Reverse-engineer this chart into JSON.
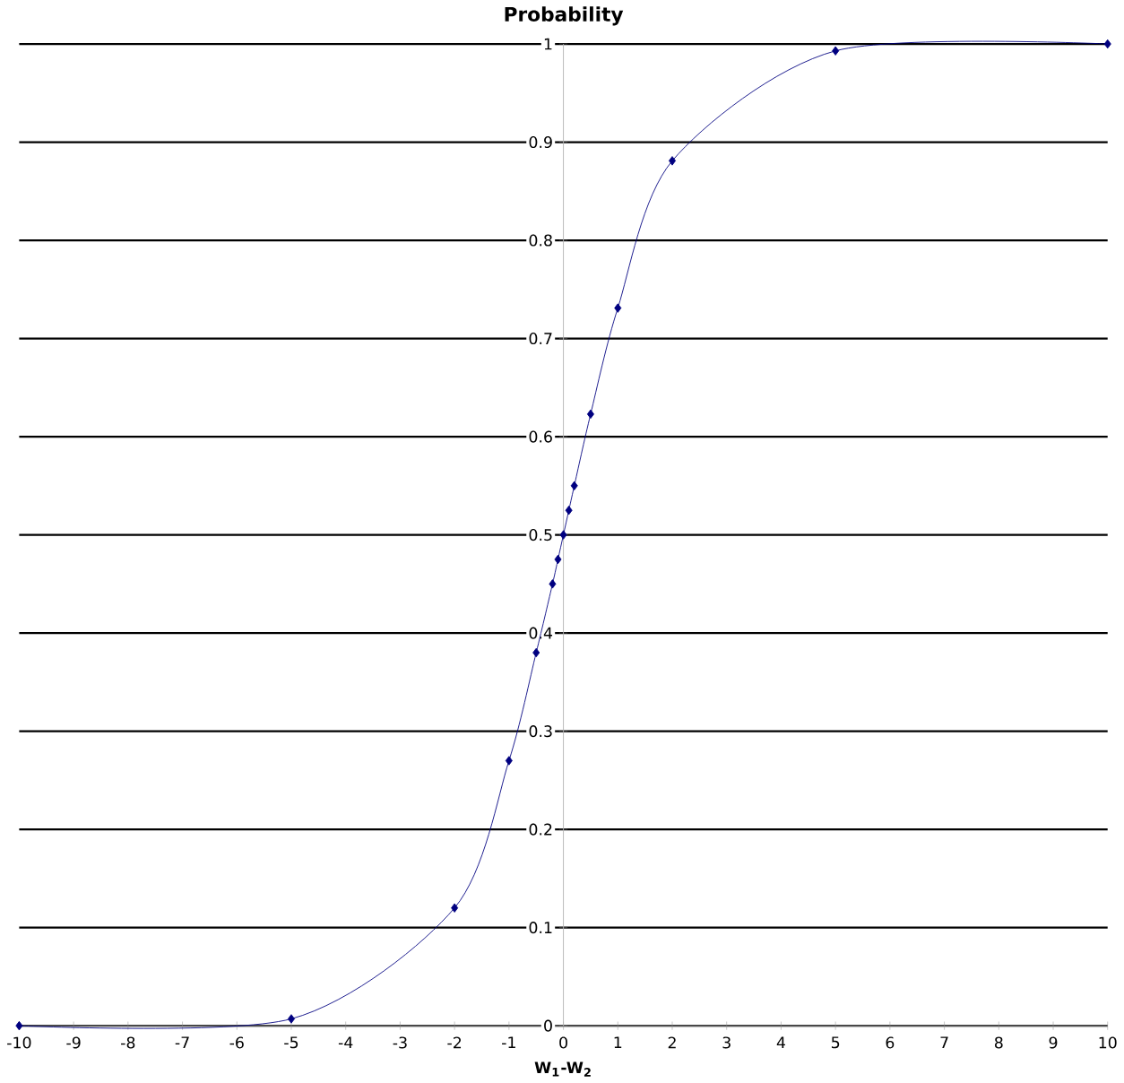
{
  "chart_data": {
    "type": "line",
    "title": "Probability",
    "xlabel": "W$_{1}$-W$_{2}$",
    "x": [
      -10,
      -5,
      -2,
      -1,
      -0.5,
      -0.2,
      -0.1,
      0,
      0.1,
      0.2,
      0.5,
      1,
      2,
      5,
      10
    ],
    "series": [
      {
        "color": "#000080",
        "values": [
          0.0,
          0.007,
          0.12,
          0.27,
          0.38,
          0.45,
          0.475,
          0.5,
          0.525,
          0.55,
          0.623,
          0.731,
          0.881,
          0.993,
          1.0
        ]
      }
    ],
    "xlim": [
      -10,
      10
    ],
    "ylim": [
      0,
      1
    ],
    "xticks": [
      -10,
      -9,
      -8,
      -7,
      -6,
      -5,
      -4,
      -3,
      -2,
      -1,
      0,
      1,
      2,
      3,
      4,
      5,
      6,
      7,
      8,
      9,
      10
    ],
    "yticks": [
      0,
      0.1,
      0.2,
      0.3,
      0.4,
      0.5,
      0.6,
      0.7,
      0.8,
      0.9,
      1
    ],
    "grid": "y",
    "marker": "diamond",
    "line_style": "solid"
  }
}
